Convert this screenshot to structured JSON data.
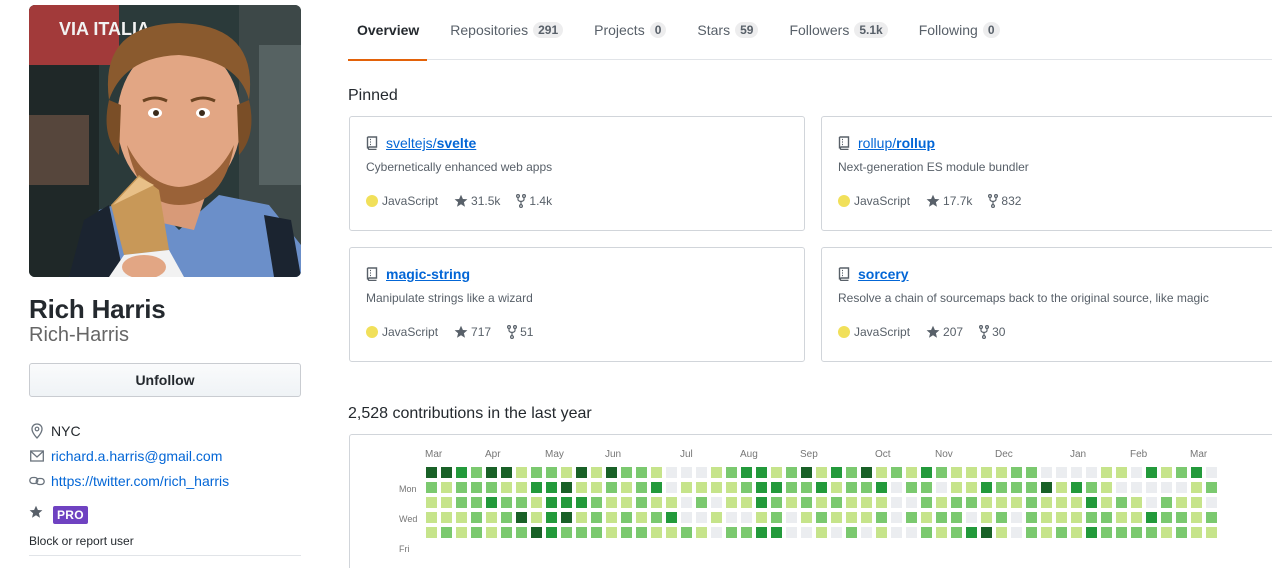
{
  "profile": {
    "name": "Rich Harris",
    "login": "Rich-Harris",
    "follow_button": "Unfollow",
    "location": "NYC",
    "email": "richard.a.harris@gmail.com",
    "website": "https://twitter.com/rich_harris",
    "pro_badge": "PRO",
    "block_report": "Block or report user",
    "avatar_lettering": "VIA ITALIA"
  },
  "tabs": [
    {
      "label": "Overview",
      "count": ""
    },
    {
      "label": "Repositories",
      "count": "291"
    },
    {
      "label": "Projects",
      "count": "0"
    },
    {
      "label": "Stars",
      "count": "59"
    },
    {
      "label": "Followers",
      "count": "5.1k"
    },
    {
      "label": "Following",
      "count": "0"
    }
  ],
  "pinned": {
    "title": "Pinned",
    "repos": [
      {
        "owner": "sveltejs",
        "name": "svelte",
        "description": "Cybernetically enhanced web apps",
        "language": "JavaScript",
        "stars": "31.5k",
        "forks": "1.4k"
      },
      {
        "owner": "rollup",
        "name": "rollup",
        "description": "Next-generation ES module bundler",
        "language": "JavaScript",
        "stars": "17.7k",
        "forks": "832"
      },
      {
        "owner": "",
        "name": "magic-string",
        "description": "Manipulate strings like a wizard",
        "language": "JavaScript",
        "stars": "717",
        "forks": "51"
      },
      {
        "owner": "",
        "name": "sorcery",
        "description": "Resolve a chain of sourcemaps back to the original source, like magic",
        "language": "JavaScript",
        "stars": "207",
        "forks": "30"
      }
    ]
  },
  "contributions": {
    "title": "2,528 contributions in the last year",
    "months": [
      "Mar",
      "Apr",
      "May",
      "Jun",
      "Jul",
      "Aug",
      "Sep",
      "Oct",
      "Nov",
      "Dec",
      "Jan",
      "Feb",
      "Mar"
    ],
    "days": [
      "Mon",
      "Wed",
      "Fri"
    ],
    "colors": [
      "#ebedf0",
      "#c6e48b",
      "#7bc96f",
      "#239a3b",
      "#196127"
    ],
    "levels": [
      "4432441221414221000123312413241213211112200001103123021112214131112010000000",
      "2122211334112123011112332231223022011322241321000001222012121222221121100000",
      "1122322133321121102011321212111002122111211131210211001212111121124121121000",
      "1112124134121212300100120121112021220120211122113221211031211111100212121100",
      "1212122432221221121022330010201002123410212132222121110120122122112121120000"
    ]
  }
}
